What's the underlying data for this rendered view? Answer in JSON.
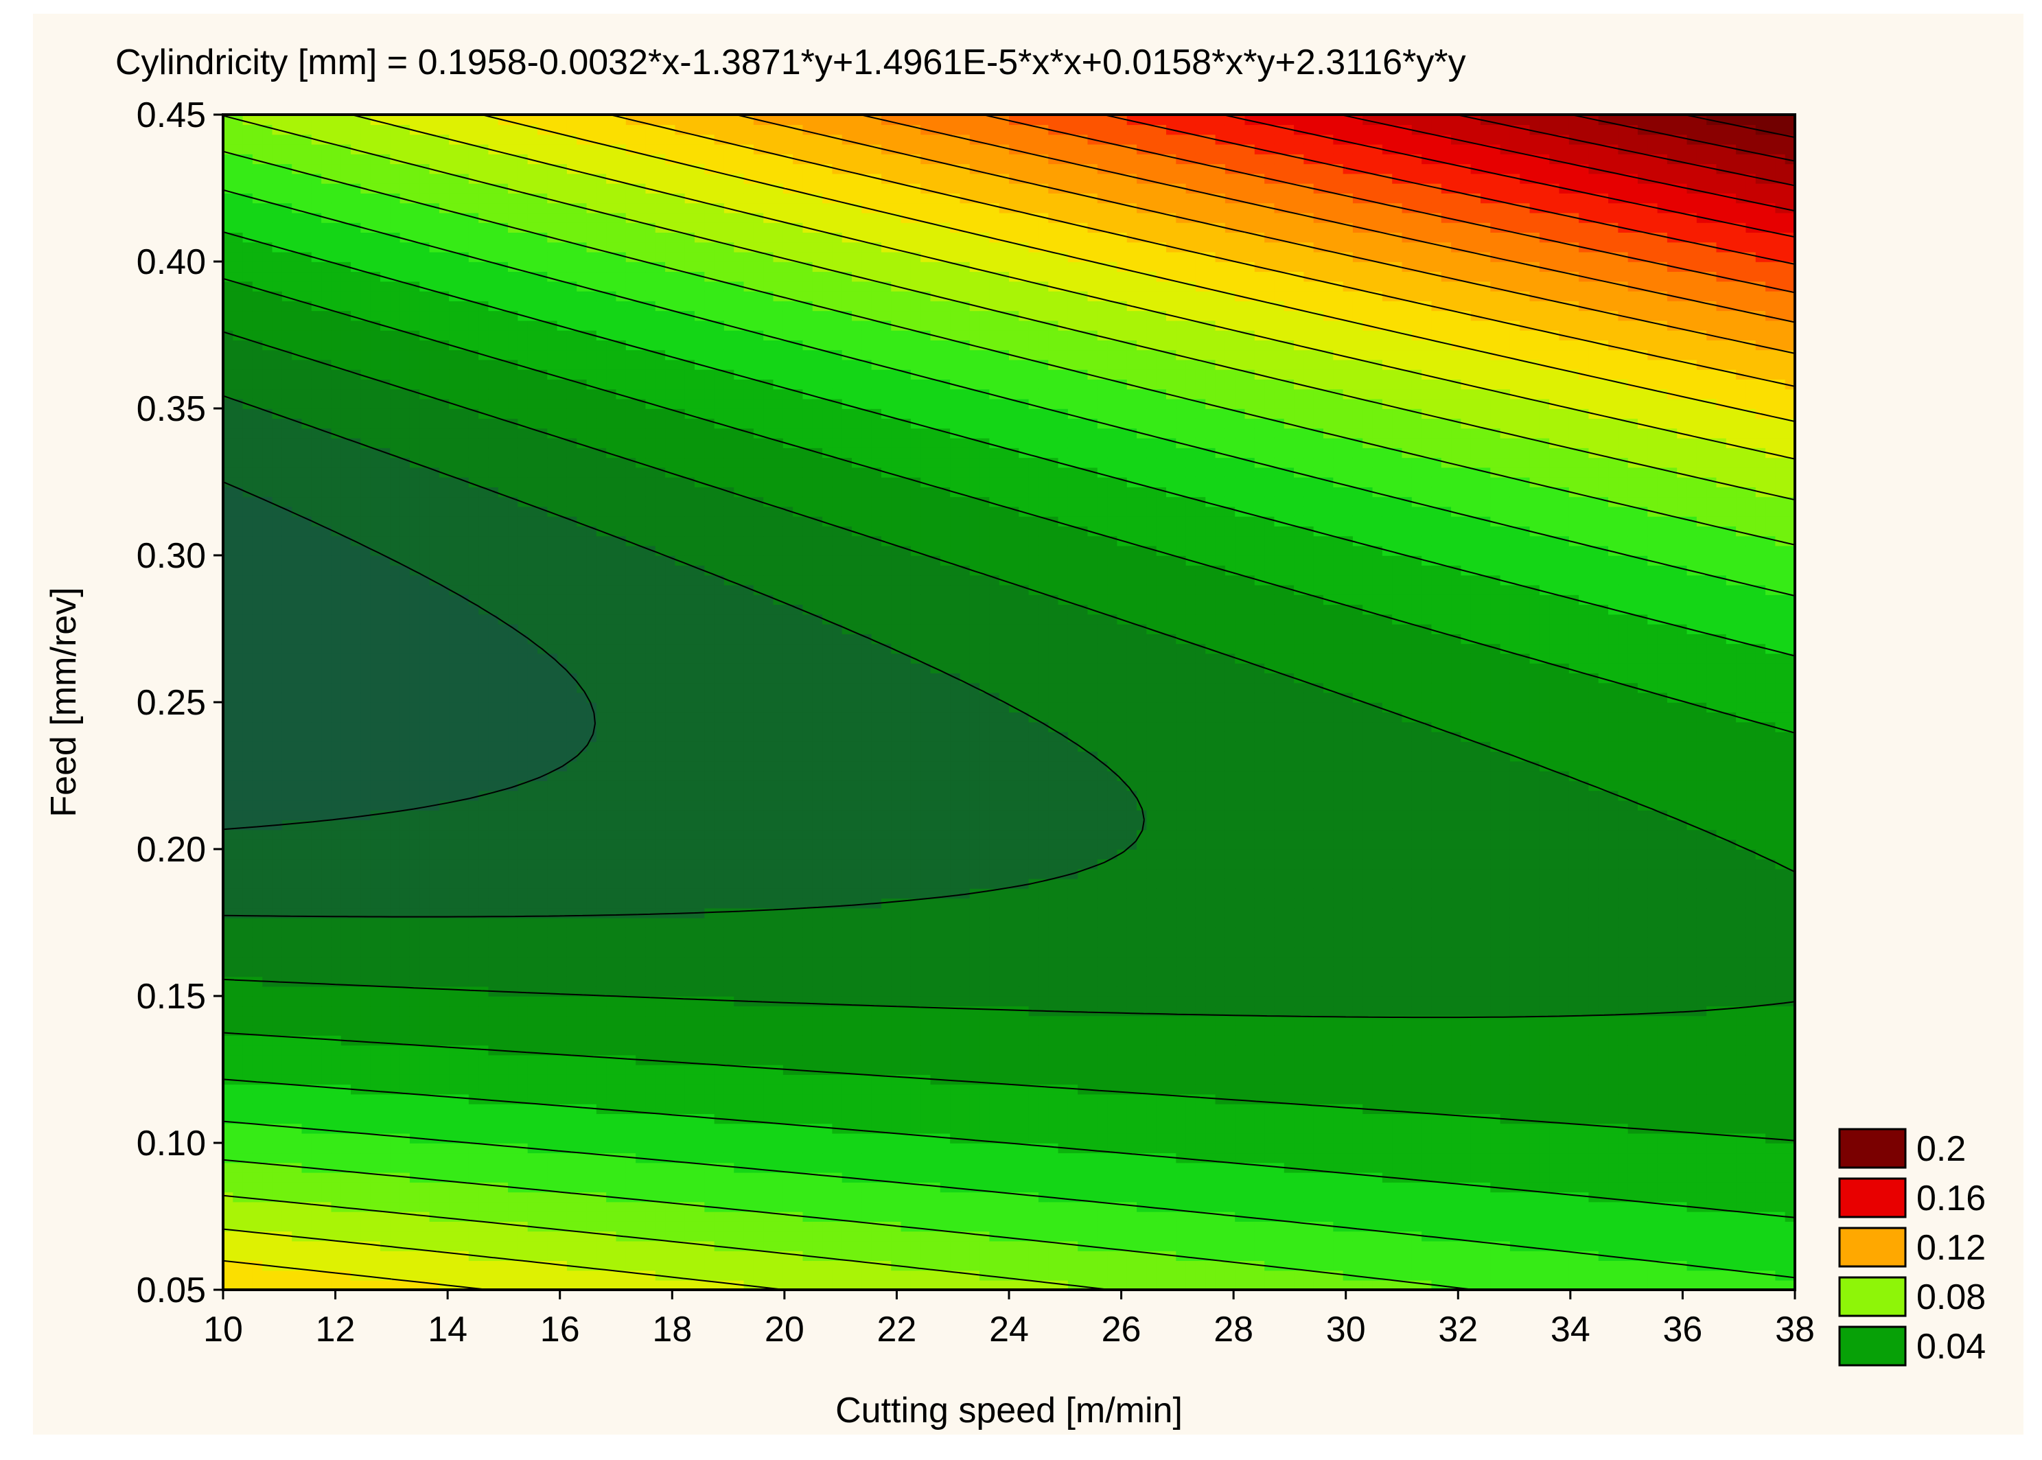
{
  "chart_data": {
    "type": "contour",
    "title": "Cylindricity [mm] = 0.1958-0.0032*x-1.3871*y+1.4961E-5*x*x+0.0158*x*y+2.3116*y*y",
    "xlabel": "Cutting speed [m/min]",
    "ylabel": "Feed [mm/rev]",
    "xlim": [
      10,
      38
    ],
    "ylim": [
      0.05,
      0.45
    ],
    "x_ticks": [
      "10",
      "12",
      "14",
      "16",
      "18",
      "20",
      "22",
      "24",
      "26",
      "28",
      "30",
      "32",
      "34",
      "36",
      "38"
    ],
    "y_ticks": [
      "0.05",
      "0.10",
      "0.15",
      "0.20",
      "0.25",
      "0.30",
      "0.35",
      "0.40",
      "0.45"
    ],
    "surface": {
      "equation": "z = 0.1958 - 0.0032*x - 1.3871*y + 1.4961E-5*x*x + 0.0158*x*y + 2.3116*y*y",
      "coefficients": {
        "const": 0.1958,
        "x": -0.0032,
        "y": -1.3871,
        "xx": 1.4961e-05,
        "xy": 0.0158,
        "yy": 2.3116
      }
    },
    "contour_levels": [
      0.01,
      0.02,
      0.03,
      0.04,
      0.05,
      0.06,
      0.07,
      0.08,
      0.09,
      0.1,
      0.11,
      0.12,
      0.13,
      0.14,
      0.15,
      0.16,
      0.17,
      0.18,
      0.19,
      0.2,
      0.21,
      0.22,
      0.23
    ],
    "color_stops": [
      {
        "value": 0.01,
        "color": "#155a3a"
      },
      {
        "value": 0.02,
        "color": "#0b7418"
      },
      {
        "value": 0.04,
        "color": "#07a107"
      },
      {
        "value": 0.06,
        "color": "#18e81b"
      },
      {
        "value": 0.08,
        "color": "#8ef508"
      },
      {
        "value": 0.1,
        "color": "#f9ef00"
      },
      {
        "value": 0.12,
        "color": "#ffb000"
      },
      {
        "value": 0.14,
        "color": "#ff7000"
      },
      {
        "value": 0.16,
        "color": "#f50000"
      },
      {
        "value": 0.18,
        "color": "#b80000"
      },
      {
        "value": 0.2,
        "color": "#7a0000"
      },
      {
        "value": 0.23,
        "color": "#4a0000"
      }
    ],
    "legend": {
      "position": "right-bottom",
      "items": [
        {
          "label": "0.2",
          "color": "#7a0000"
        },
        {
          "label": "0.16",
          "color": "#e80000"
        },
        {
          "label": "0.12",
          "color": "#ffa800"
        },
        {
          "label": "0.08",
          "color": "#8ef508"
        },
        {
          "label": "0.04",
          "color": "#07a107"
        }
      ]
    },
    "grid": false
  }
}
